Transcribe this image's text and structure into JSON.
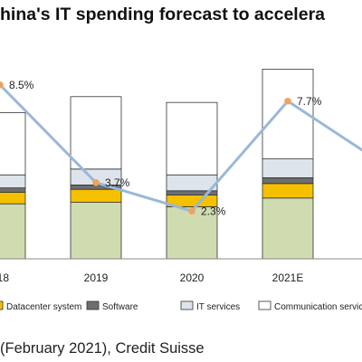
{
  "title": "hina's IT spending forecast to accelera",
  "source": "(February 2021), Credit Suisse",
  "colors": {
    "hardware": "#cfdcb0",
    "datacenter": "#f5c000",
    "software": "#6e6e6e",
    "it_services": "#dde4ec",
    "communication": "#ffffff",
    "growth_line": "#9ab8d8",
    "growth_marker": "#f0a35a",
    "outline": "#333333"
  },
  "chart_data": {
    "type": "bar",
    "stacked": true,
    "categories": [
      "018",
      "2019",
      "2020",
      "2021E",
      ""
    ],
    "series": [
      {
        "name": "",
        "key": "hardware",
        "values": [
          38,
          39,
          36,
          42,
          0
        ]
      },
      {
        "name": "Datacenter system",
        "key": "datacenter",
        "values": [
          8,
          9,
          8,
          10,
          0
        ]
      },
      {
        "name": "Software",
        "key": "software",
        "values": [
          3,
          3,
          3,
          4,
          0
        ]
      },
      {
        "name": "IT services",
        "key": "it_services",
        "values": [
          9,
          11,
          11,
          13,
          0
        ]
      },
      {
        "name": "Communication servic",
        "key": "communication",
        "values": [
          43,
          50,
          50,
          62,
          0
        ]
      }
    ],
    "growth_line": {
      "values": [
        8.5,
        3.7,
        2.3,
        7.7,
        4.6
      ],
      "labels": [
        "8.5%",
        "3.7%",
        "2.3%",
        "7.7%",
        ""
      ],
      "ylim": [
        0,
        10
      ]
    },
    "legend": [
      {
        "key": "datacenter",
        "label": "Datacenter system"
      },
      {
        "key": "software",
        "label": "Software"
      },
      {
        "key": "it_services",
        "label": "IT services"
      },
      {
        "key": "communication",
        "label": "Communication servic"
      }
    ]
  }
}
